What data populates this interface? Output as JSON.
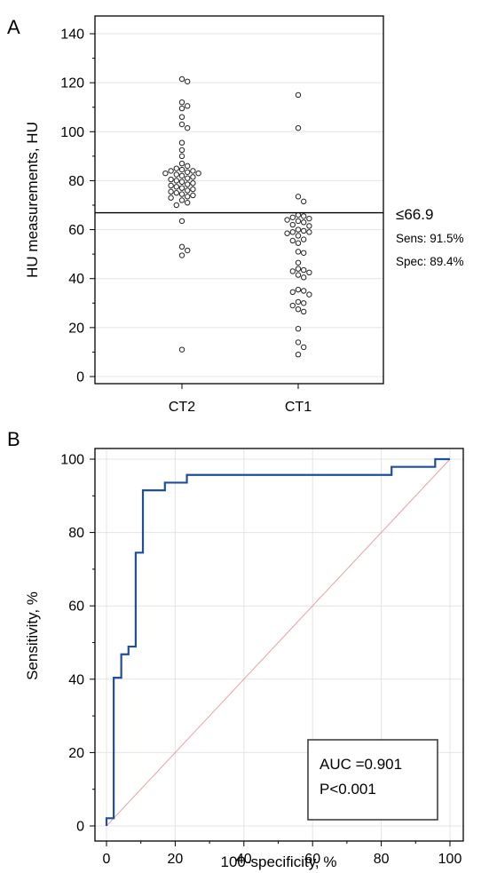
{
  "chart_data": [
    {
      "panel": "A",
      "type": "scatter",
      "ylabel": "HU measurements, HU",
      "xlabel": "",
      "categories": [
        "CT2",
        "CT1"
      ],
      "ylim": [
        0,
        140
      ],
      "yticks": [
        0,
        20,
        40,
        60,
        80,
        100,
        120,
        140
      ],
      "cutoff": {
        "value": 66.9,
        "label": "≤66.9",
        "sens": "Sens: 91.5%",
        "spec": "Spec: 89.4%"
      },
      "series": [
        {
          "category": "CT2",
          "values": [
            121.5,
            120.5,
            112,
            110.5,
            109.5,
            106,
            103,
            101.5,
            95.5,
            92.5,
            90,
            87,
            86,
            85,
            84.5,
            84,
            84,
            83.5,
            83,
            83,
            82.5,
            82,
            81.5,
            81,
            80.5,
            80,
            79.5,
            79,
            78.5,
            78,
            77.5,
            77,
            76.5,
            76,
            75.5,
            75,
            74.5,
            74,
            73.5,
            73,
            72,
            71,
            70,
            63.5,
            53,
            51.5,
            49.5,
            11
          ]
        },
        {
          "category": "CT1",
          "values": [
            115,
            101.5,
            73.5,
            71.5,
            66,
            65.5,
            65,
            64.5,
            64,
            63.5,
            63,
            62,
            61.5,
            60,
            59.5,
            59,
            59,
            58.5,
            57.5,
            56,
            55.5,
            54.5,
            51,
            50.5,
            46.5,
            44,
            43.5,
            43,
            42.5,
            41.5,
            40.5,
            35.5,
            35,
            34.5,
            33.5,
            30.5,
            30,
            29,
            27.5,
            26.5,
            19.5,
            14,
            12,
            9
          ]
        }
      ]
    },
    {
      "panel": "B",
      "type": "line",
      "xlabel": "100-specificity, %",
      "ylabel": "Sensitivity, %",
      "xlim": [
        0,
        100
      ],
      "ylim": [
        0,
        100
      ],
      "xticks": [
        0,
        20,
        40,
        60,
        80,
        100
      ],
      "yticks": [
        0,
        20,
        40,
        60,
        80,
        100
      ],
      "color": "#1f4e9a",
      "diagonal_color": "#e8a0a0",
      "roc": [
        [
          0,
          0
        ],
        [
          0,
          2.1
        ],
        [
          2.1,
          2.1
        ],
        [
          2.1,
          40.4
        ],
        [
          4.3,
          40.4
        ],
        [
          4.3,
          46.8
        ],
        [
          6.4,
          46.8
        ],
        [
          6.4,
          48.9
        ],
        [
          8.5,
          48.9
        ],
        [
          8.5,
          74.5
        ],
        [
          10.6,
          74.5
        ],
        [
          10.6,
          91.5
        ],
        [
          17,
          91.5
        ],
        [
          17,
          93.6
        ],
        [
          23.4,
          93.6
        ],
        [
          23.4,
          95.7
        ],
        [
          83,
          95.7
        ],
        [
          83,
          97.9
        ],
        [
          95.7,
          97.9
        ],
        [
          95.7,
          100
        ],
        [
          100,
          100
        ]
      ],
      "annotation": {
        "auc": "AUC =0.901",
        "p": "P<0.001"
      }
    }
  ],
  "panel_labels": {
    "a": "A",
    "b": "B"
  }
}
